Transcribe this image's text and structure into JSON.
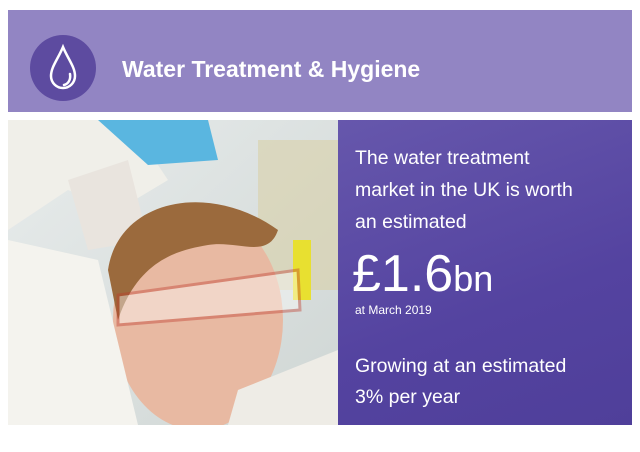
{
  "header": {
    "title": "Water Treatment & Hygiene"
  },
  "panel": {
    "intro_lines": [
      "The water treatment",
      "market in the UK is worth",
      "an estimated"
    ],
    "amount": "£1.6",
    "amount_unit": "bn",
    "date": "at March 2019",
    "growth_lines": [
      "Growing at an estimated",
      "3% per year"
    ]
  }
}
